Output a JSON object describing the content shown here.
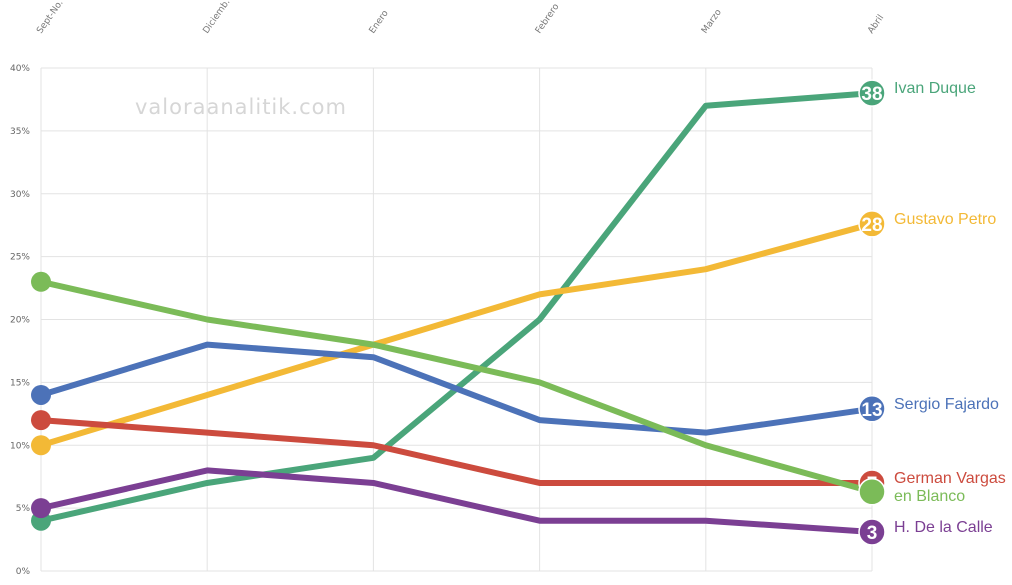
{
  "watermark": "valoraanalitik.com",
  "chart_data": {
    "type": "line",
    "categories": [
      "Sept-No.",
      "Diciemb.",
      "Enero",
      "Febrero",
      "Marzo",
      "Abril"
    ],
    "ylim": [
      0,
      40
    ],
    "yticks": [
      "0%",
      "5%",
      "10%",
      "15%",
      "20%",
      "25%",
      "30%",
      "35%",
      "40%"
    ],
    "grid": true,
    "legend": "end-labels-right",
    "series": [
      {
        "name": "Ivan Duque",
        "end_label": "38",
        "color": "#4aa57a",
        "values": [
          4,
          7,
          9,
          20,
          37,
          38
        ]
      },
      {
        "name": "Gustavo Petro",
        "end_label": "28",
        "color": "#f3b936",
        "values": [
          10,
          14,
          18,
          22,
          24,
          27.6
        ]
      },
      {
        "name": "Sergio Fajardo",
        "end_label": "13",
        "color": "#4c72b8",
        "values": [
          14,
          18,
          17,
          12,
          11,
          12.9
        ]
      },
      {
        "name": "German Vargas",
        "end_label": "7",
        "color": "#cc4b3e",
        "values": [
          12,
          11,
          10,
          7,
          7,
          7
        ]
      },
      {
        "name": "en Blanco",
        "end_label": "",
        "color": "#7bbb58",
        "values": [
          23,
          20,
          18,
          15,
          10,
          6.3
        ]
      },
      {
        "name": "H. De la Calle",
        "end_label": "3",
        "color": "#7b3f93",
        "values": [
          5,
          8,
          7,
          4,
          4,
          3.1
        ]
      }
    ]
  }
}
